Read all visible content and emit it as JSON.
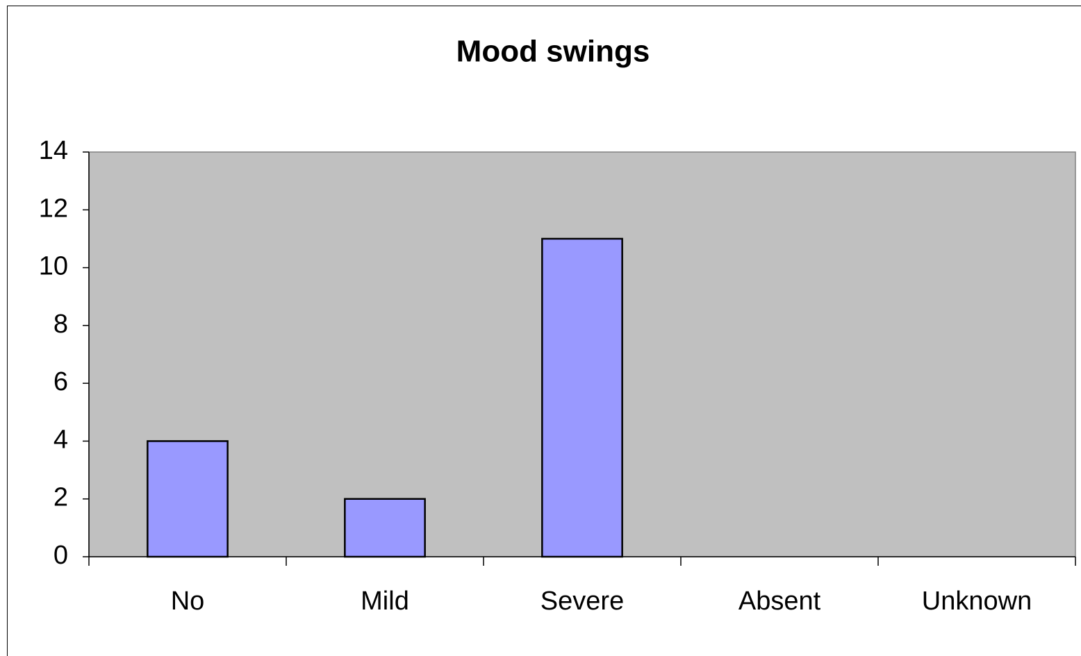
{
  "chart_data": {
    "type": "bar",
    "title": "Mood swings",
    "categories": [
      "No",
      "Mild",
      "Severe",
      "Absent",
      "Unknown"
    ],
    "values": [
      4,
      2,
      11,
      0,
      0
    ],
    "color": "#9999ff",
    "ylim": [
      0,
      14
    ],
    "yticks": [
      0,
      2,
      4,
      6,
      8,
      10,
      12,
      14
    ],
    "grid": false
  }
}
